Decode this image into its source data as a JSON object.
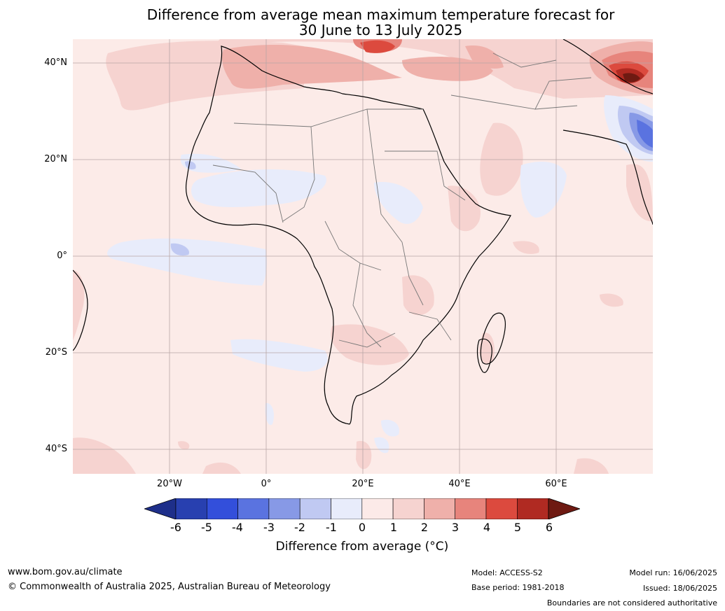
{
  "title": {
    "line1": "Difference from average mean maximum temperature forecast for",
    "line2": "30 June to 13 July 2025"
  },
  "map": {
    "region": "Africa",
    "lat_labels": [
      "40°N",
      "20°N",
      "0°",
      "20°S",
      "40°S"
    ],
    "lon_labels": [
      "20°W",
      "0°",
      "20°E",
      "40°E",
      "60°E"
    ],
    "colors": {
      "ocean_background": "#fcebe8",
      "neg6": "#1e2f8a",
      "neg5": "#2840b0",
      "neg4": "#334fdb",
      "neg3": "#5a73e0",
      "neg2": "#8799e6",
      "neg1": "#c0c9f2",
      "neg0": "#e8ecfb",
      "pos0": "#fceae8",
      "pos1": "#f6d3d0",
      "pos2": "#efb0aa",
      "pos3": "#e7847c",
      "pos4": "#dc4a3e",
      "pos5": "#b02a22",
      "pos6": "#6e1a12"
    }
  },
  "colorbar": {
    "ticks": [
      "-6",
      "-5",
      "-4",
      "-3",
      "-2",
      "-1",
      "0",
      "1",
      "2",
      "3",
      "4",
      "5",
      "6"
    ],
    "label": "Difference from average (°C)"
  },
  "footer": {
    "website": "www.bom.gov.au/climate",
    "copyright": "© Commonwealth of Australia 2025, Australian Bureau of Meteorology",
    "model": "Model: ACCESS-S2",
    "base_period": "Base period: 1981-2018",
    "model_run": "Model run: 16/06/2025",
    "issued": "Issued: 18/06/2025",
    "disclaimer": "Boundaries are not considered authoritative"
  }
}
